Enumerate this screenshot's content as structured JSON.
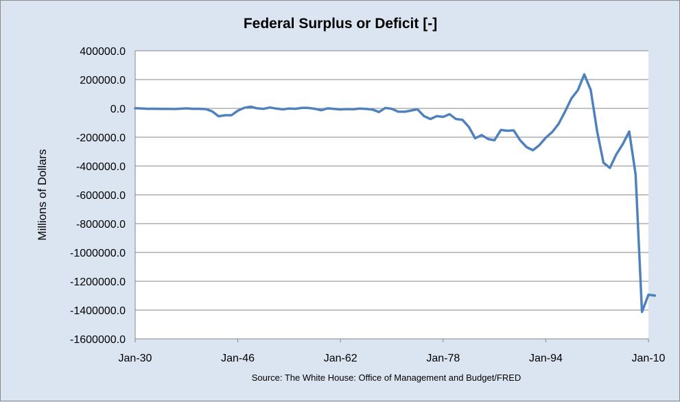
{
  "chart_data": {
    "type": "line",
    "title": "Federal Surplus or Deficit [-]",
    "ylabel": "Millions of Dollars",
    "xlabel": "",
    "source": "Source: The White House: Office of Management and Budget/FRED",
    "ylim": [
      -1600000,
      400000
    ],
    "y_ticks": [
      400000,
      200000,
      0,
      -200000,
      -400000,
      -600000,
      -800000,
      -1000000,
      -1200000,
      -1400000,
      -1600000
    ],
    "y_tick_labels": [
      "400000.0",
      "200000.0",
      "0.0",
      "-200000.0",
      "-400000.0",
      "-600000.0",
      "-800000.0",
      "-1000000.0",
      "-1200000.0",
      "-1400000.0",
      "-1600000.0"
    ],
    "xlim": [
      1930,
      2010
    ],
    "x_ticks": [
      1930,
      1946,
      1962,
      1978,
      1994,
      2010
    ],
    "x_tick_labels": [
      "Jan-30",
      "Jan-46",
      "Jan-62",
      "Jan-78",
      "Jan-94",
      "Jan-10"
    ],
    "grid": "horizontal",
    "legend": "none",
    "series": [
      {
        "color": "#4f81bd",
        "x": [
          1930,
          1931,
          1932,
          1933,
          1934,
          1935,
          1936,
          1937,
          1938,
          1939,
          1940,
          1941,
          1942,
          1943,
          1944,
          1945,
          1946,
          1947,
          1948,
          1949,
          1950,
          1951,
          1952,
          1953,
          1954,
          1955,
          1956,
          1957,
          1958,
          1959,
          1960,
          1961,
          1962,
          1963,
          1964,
          1965,
          1966,
          1967,
          1968,
          1969,
          1970,
          1971,
          1972,
          1973,
          1974,
          1975,
          1976,
          1977,
          1978,
          1979,
          1980,
          1981,
          1982,
          1983,
          1984,
          1985,
          1986,
          1987,
          1988,
          1989,
          1990,
          1991,
          1992,
          1993,
          1994,
          1995,
          1996,
          1997,
          1998,
          1999,
          2000,
          2001,
          2002,
          2003,
          2004,
          2005,
          2006,
          2007,
          2008,
          2009,
          2010,
          2011
        ],
        "values": [
          1000,
          -500,
          -2700,
          -2600,
          -3600,
          -2800,
          -4300,
          -2200,
          -100,
          -2800,
          -2900,
          -4900,
          -20500,
          -54600,
          -47600,
          -47600,
          -15900,
          4000,
          11800,
          600,
          -3100,
          6100,
          -1500,
          -6500,
          -1200,
          -3000,
          3900,
          3400,
          -2800,
          -12800,
          300,
          -3300,
          -7100,
          -4800,
          -5900,
          -1400,
          -3700,
          -8600,
          -25200,
          3200,
          -2800,
          -23000,
          -23400,
          -14900,
          -6100,
          -53200,
          -73700,
          -53700,
          -59200,
          -40700,
          -73800,
          -79000,
          -128000,
          -207800,
          -185400,
          -212300,
          -221200,
          -149700,
          -155200,
          -152600,
          -221000,
          -269200,
          -290300,
          -255100,
          -203200,
          -164000,
          -107400,
          -21900,
          69300,
          125600,
          236200,
          128200,
          -157800,
          -377600,
          -412700,
          -318300,
          -248200,
          -160700,
          -458600,
          -1412700,
          -1293500,
          -1299600
        ]
      }
    ]
  }
}
